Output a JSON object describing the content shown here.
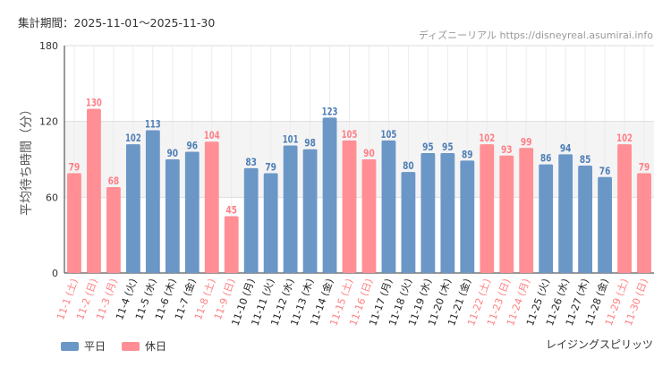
{
  "header": {
    "period": "集計期間：2025-11-01〜2025-11-30",
    "site": "ディズニーリアル https://disneyreal.asumirai.info"
  },
  "footer": {
    "attraction": "レイジングスピリッツ"
  },
  "chart_data": {
    "type": "bar",
    "title": "レイジングスピリッツ",
    "ylabel": "平均待ち時間（分）",
    "xlabel": "",
    "ylim": [
      0,
      180
    ],
    "yticks": [
      0,
      60,
      120,
      180
    ],
    "grid": true,
    "legend_position": "bottom-left",
    "legend": [
      {
        "name": "平日",
        "color": "#6b97c7"
      },
      {
        "name": "休日",
        "color": "#ff8f95"
      }
    ],
    "colors": {
      "weekday": "#6b97c7",
      "holiday": "#ff8f95",
      "holiday_text": "#ff8080",
      "weekday_text": "#222222",
      "band": "#f4f4f4"
    },
    "categories": [
      "11-1 (土)",
      "11-2 (日)",
      "11-3 (月)",
      "11-4 (火)",
      "11-5 (水)",
      "11-6 (木)",
      "11-7 (金)",
      "11-8 (土)",
      "11-9 (日)",
      "11-10 (月)",
      "11-11 (火)",
      "11-12 (水)",
      "11-13 (木)",
      "11-14 (金)",
      "11-15 (土)",
      "11-16 (日)",
      "11-17 (月)",
      "11-18 (火)",
      "11-19 (水)",
      "11-20 (木)",
      "11-21 (金)",
      "11-22 (土)",
      "11-23 (日)",
      "11-24 (月)",
      "11-25 (火)",
      "11-26 (水)",
      "11-27 (木)",
      "11-28 (金)",
      "11-29 (土)",
      "11-30 (日)"
    ],
    "values": [
      79,
      130,
      68,
      102,
      113,
      90,
      96,
      104,
      45,
      83,
      79,
      101,
      98,
      123,
      105,
      90,
      105,
      80,
      95,
      95,
      89,
      102,
      93,
      99,
      86,
      94,
      85,
      76,
      102,
      79
    ],
    "day_type": [
      "休日",
      "休日",
      "休日",
      "平日",
      "平日",
      "平日",
      "平日",
      "休日",
      "休日",
      "平日",
      "平日",
      "平日",
      "平日",
      "平日",
      "休日",
      "休日",
      "平日",
      "平日",
      "平日",
      "平日",
      "平日",
      "休日",
      "休日",
      "休日",
      "平日",
      "平日",
      "平日",
      "平日",
      "休日",
      "休日"
    ]
  }
}
